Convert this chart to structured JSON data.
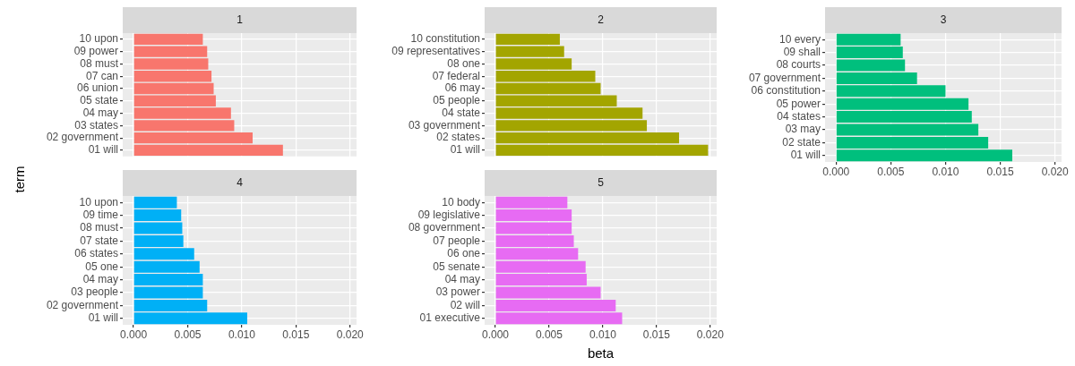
{
  "chart_data": [
    {
      "type": "bar",
      "orientation": "horizontal",
      "title": "1",
      "ylabel": "term",
      "categories": [
        "10 upon",
        "09 power",
        "08 must",
        "07 can",
        "06 union",
        "05 state",
        "04 may",
        "03 states",
        "02 government",
        "01 will"
      ],
      "values": [
        0.0064,
        0.0068,
        0.0069,
        0.0072,
        0.0074,
        0.0076,
        0.009,
        0.0093,
        0.011,
        0.0138
      ],
      "color": "#f8766d",
      "xlim": [
        -0.001,
        0.0206
      ],
      "xticks": [
        {
          "value": 0,
          "label": null
        },
        {
          "value": 0.005,
          "label": null
        },
        {
          "value": 0.01,
          "label": null
        },
        {
          "value": 0.015,
          "label": null
        },
        {
          "value": 0.02,
          "label": null
        }
      ],
      "grid": true,
      "tick_labels": "y"
    },
    {
      "type": "bar",
      "orientation": "horizontal",
      "title": "2",
      "categories": [
        "10 constitution",
        "09 representatives",
        "08 one",
        "07 federal",
        "06 may",
        "05 people",
        "04 state",
        "03 government",
        "02 states",
        "01 will"
      ],
      "values": [
        0.006,
        0.0064,
        0.0071,
        0.0093,
        0.0098,
        0.0113,
        0.0137,
        0.0141,
        0.0171,
        0.0198
      ],
      "color": "#a3a500",
      "xlim": [
        -0.001,
        0.0206
      ],
      "xticks": [
        {
          "value": 0,
          "label": null
        },
        {
          "value": 0.005,
          "label": null
        },
        {
          "value": 0.01,
          "label": null
        },
        {
          "value": 0.015,
          "label": null
        },
        {
          "value": 0.02,
          "label": null
        }
      ],
      "grid": true,
      "tick_labels": "y"
    },
    {
      "type": "bar",
      "orientation": "horizontal",
      "title": "3",
      "categories": [
        "10 every",
        "09 shall",
        "08 courts",
        "07 government",
        "06 constitution",
        "05 power",
        "04 states",
        "03 may",
        "02 state",
        "01 will"
      ],
      "values": [
        0.0059,
        0.0061,
        0.0063,
        0.0074,
        0.01,
        0.0121,
        0.0124,
        0.013,
        0.0139,
        0.0161
      ],
      "color": "#00bf7d",
      "xlim": [
        -0.001,
        0.0206
      ],
      "xticks": [
        {
          "value": 0,
          "label": "0.000"
        },
        {
          "value": 0.005,
          "label": "0.005"
        },
        {
          "value": 0.01,
          "label": "0.010"
        },
        {
          "value": 0.015,
          "label": "0.015"
        },
        {
          "value": 0.02,
          "label": "0.020"
        }
      ],
      "grid": true
    },
    {
      "type": "bar",
      "orientation": "horizontal",
      "title": "4",
      "categories": [
        "10 upon",
        "09 time",
        "08 must",
        "07 state",
        "06 states",
        "05 one",
        "04 may",
        "03 people",
        "02 government",
        "01 will"
      ],
      "values": [
        0.004,
        0.0044,
        0.0045,
        0.0046,
        0.0056,
        0.0061,
        0.0064,
        0.0064,
        0.0068,
        0.0105
      ],
      "color": "#00b0f6",
      "xlim": [
        -0.001,
        0.0206
      ],
      "xticks": [
        {
          "value": 0,
          "label": "0.000"
        },
        {
          "value": 0.005,
          "label": "0.005"
        },
        {
          "value": 0.01,
          "label": "0.010"
        },
        {
          "value": 0.015,
          "label": "0.015"
        },
        {
          "value": 0.02,
          "label": "0.020"
        }
      ],
      "grid": true
    },
    {
      "type": "bar",
      "orientation": "horizontal",
      "title": "5",
      "xlabel": "beta",
      "categories": [
        "10 body",
        "09 legislative",
        "08 government",
        "07 people",
        "06 one",
        "05 senate",
        "04 may",
        "03 power",
        "02 will",
        "01 executive"
      ],
      "values": [
        0.0067,
        0.0071,
        0.0071,
        0.0073,
        0.0077,
        0.0084,
        0.0085,
        0.0098,
        0.0112,
        0.0118
      ],
      "color": "#e76bf3",
      "xlim": [
        -0.001,
        0.0206
      ],
      "xticks": [
        {
          "value": 0,
          "label": "0.000"
        },
        {
          "value": 0.005,
          "label": "0.005"
        },
        {
          "value": 0.01,
          "label": "0.010"
        },
        {
          "value": 0.015,
          "label": "0.015"
        },
        {
          "value": 0.02,
          "label": "0.020"
        }
      ],
      "grid": true
    }
  ]
}
